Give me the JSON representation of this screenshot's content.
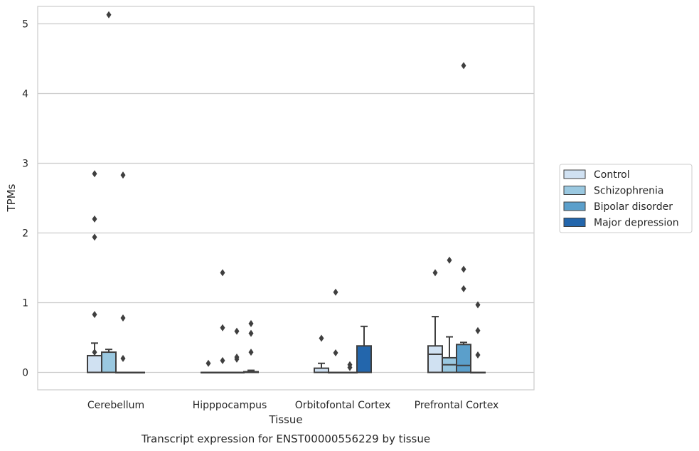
{
  "chart_data": {
    "type": "box",
    "title": "",
    "caption": "Transcript expression for ENST00000556229 by tissue",
    "xlabel": "Tissue",
    "ylabel": "TPMs",
    "ylim": [
      -0.25,
      5.4
    ],
    "yticks": [
      0,
      1,
      2,
      3,
      4,
      5
    ],
    "grid": "horizontal",
    "legend_position": "right",
    "categories": [
      "Cerebellum",
      "Hipppocampus",
      "Orbitofontal Cortex",
      "Prefrontal Cortex"
    ],
    "series": [
      {
        "name": "Control",
        "color": "#d0e1f2",
        "boxes": [
          {
            "q1": 0,
            "median": 0,
            "q3": 0.24,
            "whisker_low": 0,
            "whisker_high": 0.42,
            "outliers": [
              2.85,
              2.2,
              1.94,
              0.83,
              0.29
            ]
          },
          {
            "q1": 0,
            "median": 0,
            "q3": 0,
            "whisker_low": 0,
            "whisker_high": 0,
            "outliers": [
              0.13
            ]
          },
          {
            "q1": 0,
            "median": 0,
            "q3": 0.06,
            "whisker_low": 0,
            "whisker_high": 0.13,
            "outliers": [
              0.49
            ]
          },
          {
            "q1": 0,
            "median": 0.26,
            "q3": 0.38,
            "whisker_low": 0,
            "whisker_high": 0.8,
            "outliers": [
              1.43
            ]
          }
        ]
      },
      {
        "name": "Schizophrenia",
        "color": "#9ac8e0",
        "boxes": [
          {
            "q1": 0,
            "median": 0,
            "q3": 0.29,
            "whisker_low": 0,
            "whisker_high": 0.33,
            "outliers": [
              5.13
            ]
          },
          {
            "q1": 0,
            "median": 0,
            "q3": 0,
            "whisker_low": 0,
            "whisker_high": 0,
            "outliers": [
              1.43,
              0.64,
              0.17
            ]
          },
          {
            "q1": 0,
            "median": 0,
            "q3": 0,
            "whisker_low": 0,
            "whisker_high": 0,
            "outliers": [
              1.15,
              0.28
            ]
          },
          {
            "q1": 0,
            "median": 0.11,
            "q3": 0.21,
            "whisker_low": 0,
            "whisker_high": 0.51,
            "outliers": [
              1.61
            ]
          }
        ]
      },
      {
        "name": "Bipolar disorder",
        "color": "#5b9fcb",
        "boxes": [
          {
            "q1": 0,
            "median": 0,
            "q3": 0,
            "whisker_low": 0,
            "whisker_high": 0,
            "outliers": [
              2.83,
              0.78,
              0.2
            ]
          },
          {
            "q1": 0,
            "median": 0,
            "q3": 0,
            "whisker_low": 0,
            "whisker_high": 0,
            "outliers": [
              0.59,
              0.22,
              0.19
            ]
          },
          {
            "q1": 0,
            "median": 0,
            "q3": 0,
            "whisker_low": 0,
            "whisker_high": 0,
            "outliers": [
              0.11,
              0.07
            ]
          },
          {
            "q1": 0,
            "median": 0.1,
            "q3": 0.4,
            "whisker_low": 0,
            "whisker_high": 0.43,
            "outliers": [
              4.4,
              1.48,
              1.2
            ]
          }
        ]
      },
      {
        "name": "Major depression",
        "color": "#2366ac",
        "boxes": [
          {
            "q1": 0,
            "median": 0,
            "q3": 0,
            "whisker_low": 0,
            "whisker_high": 0,
            "outliers": []
          },
          {
            "q1": 0,
            "median": 0,
            "q3": 0.01,
            "whisker_low": 0,
            "whisker_high": 0.03,
            "outliers": [
              0.7,
              0.56,
              0.29
            ]
          },
          {
            "q1": 0,
            "median": 0,
            "q3": 0.38,
            "whisker_low": 0,
            "whisker_high": 0.66,
            "outliers": []
          },
          {
            "q1": 0,
            "median": 0,
            "q3": 0,
            "whisker_low": 0,
            "whisker_high": 0,
            "outliers": [
              0.97,
              0.6,
              0.25
            ]
          }
        ]
      }
    ]
  }
}
